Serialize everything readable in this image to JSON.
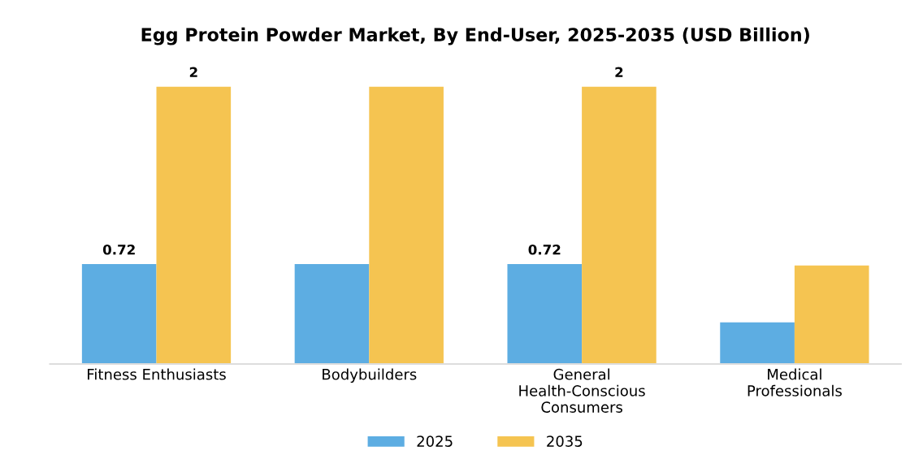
{
  "chart_data": {
    "type": "bar",
    "title": "Egg Protein Powder Market, By End-User, 2025-2035 (USD Billion)",
    "categories": [
      "Fitness Enthusiasts",
      "Bodybuilders",
      "General\nHealth-Conscious\nConsumers",
      "Medical\nProfessionals"
    ],
    "series": [
      {
        "name": "2025",
        "color": "#5dade2",
        "values": [
          0.72,
          0.72,
          0.72,
          0.3
        ],
        "value_labels": [
          "0.72",
          null,
          "0.72",
          null
        ]
      },
      {
        "name": "2035",
        "color": "#f5c451",
        "values": [
          2,
          2,
          2,
          0.71
        ],
        "value_labels": [
          "2",
          null,
          "2",
          null
        ]
      }
    ],
    "legend": "bottom",
    "grid": false
  }
}
